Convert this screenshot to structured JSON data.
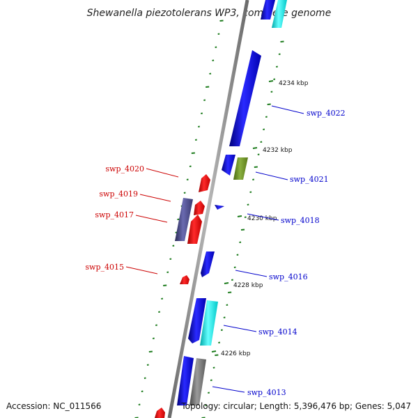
{
  "title": "Shewanella piezotolerans WP3, complete genome",
  "accession": "Accession: NC_011566",
  "topology": "Topology: circular; Length: 5,396,476 bp; Genes: 5,047",
  "colors": {
    "backbone": "#8a8a8a",
    "forward_label": "#0000cc",
    "reverse_label": "#cc0000",
    "tick": "#1a7a1a"
  },
  "kbp_labels": [
    "4234 kbp",
    "4232 kbp",
    "4230 kbp",
    "4228 kbp",
    "4226 kbp"
  ],
  "gene_labels": {
    "right": [
      "swp_4022",
      "swp_4021",
      "swp_4018",
      "swp_4016",
      "swp_4014",
      "swp_4013"
    ],
    "left": [
      "swp_4020",
      "swp_4019",
      "swp_4017",
      "swp_4015"
    ]
  }
}
